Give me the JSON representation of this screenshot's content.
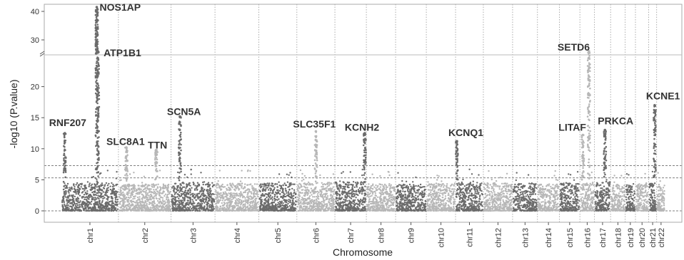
{
  "chart_data": {
    "type": "scatter",
    "subtype": "manhattan",
    "title": "",
    "xlabel": "Chromosome",
    "ylabel": "-log10 (P.value)",
    "y_axis_break": true,
    "y_lower_range": [
      0,
      25
    ],
    "y_upper_range": [
      25,
      42
    ],
    "y_ticks": [
      0,
      5,
      10,
      15,
      20,
      30,
      40
    ],
    "threshold_lines": [
      5.3,
      7.3
    ],
    "grid": "vertical dotted lines between chromosomes",
    "colors": {
      "dark": "#6b6b6b",
      "light": "#b7b7b7",
      "threshold": "#555555"
    },
    "chromosomes": [
      "chr1",
      "chr2",
      "chr3",
      "chr4",
      "chr5",
      "chr6",
      "chr7",
      "chr8",
      "chr9",
      "chr10",
      "chr11",
      "chr12",
      "chr13",
      "chr14",
      "chr15",
      "chr16",
      "chr17",
      "chr18",
      "chr19",
      "chr20",
      "chr21",
      "chr22"
    ],
    "chromosome_relative_lengths": [
      78,
      72,
      60,
      60,
      52,
      52,
      43,
      40,
      42,
      40,
      38,
      40,
      34,
      30,
      28,
      20,
      22,
      20,
      14,
      18,
      11,
      12
    ],
    "baseline_max": [
      4.5,
      4.3,
      4.6,
      4.4,
      4.5,
      4.6,
      4.7,
      4.4,
      4.3,
      4.5,
      4.6,
      4.5,
      4.4,
      4.3,
      4.5,
      4.6,
      4.7,
      4.3,
      4.4,
      4.4,
      4.5,
      4.3
    ],
    "peaks": [
      {
        "label": "RNF207",
        "chromosome": "chr1",
        "position": 0.06,
        "max": 12.5,
        "label_y": 14.2
      },
      {
        "label": "NOS1AP",
        "chromosome": "chr1",
        "position": 0.62,
        "max": 41.5,
        "label_y": 41.5
      },
      {
        "label": "ATP1B1",
        "chromosome": "chr1",
        "position": 0.64,
        "max": 26.0,
        "label_y": 25.5
      },
      {
        "label": "SLC8A1",
        "chromosome": "chr2",
        "position": 0.15,
        "max": 10.2,
        "label_y": 11.2
      },
      {
        "label": "TTN",
        "chromosome": "chr2",
        "position": 0.72,
        "max": 9.8,
        "label_y": 10.6
      },
      {
        "label": "SCN5A",
        "chromosome": "chr3",
        "position": 0.2,
        "max": 15.2,
        "label_y": 16.0
      },
      {
        "label": "SLC35F1",
        "chromosome": "chr6",
        "position": 0.5,
        "max": 12.8,
        "label_y": 14.0
      },
      {
        "label": "KCNH2",
        "chromosome": "chr7",
        "position": 0.95,
        "max": 12.5,
        "label_y": 13.5
      },
      {
        "label": "KCNQ1",
        "chromosome": "chr11",
        "position": 0.05,
        "max": 11.2,
        "label_y": 12.6
      },
      {
        "label": "LITAF",
        "chromosome": "chr16",
        "position": 0.2,
        "max": 12.2,
        "label_y": 13.5
      },
      {
        "label": "SETD6",
        "chromosome": "chr16",
        "position": 0.62,
        "max": 26.0,
        "label_y": 27.5
      },
      {
        "label": "PRKCA",
        "chromosome": "chr17",
        "position": 0.65,
        "max": 13.0,
        "label_y": 14.5
      },
      {
        "label": "KCNE1",
        "chromosome": "chr21",
        "position": 0.75,
        "max": 17.0,
        "label_y": 18.5
      }
    ]
  }
}
